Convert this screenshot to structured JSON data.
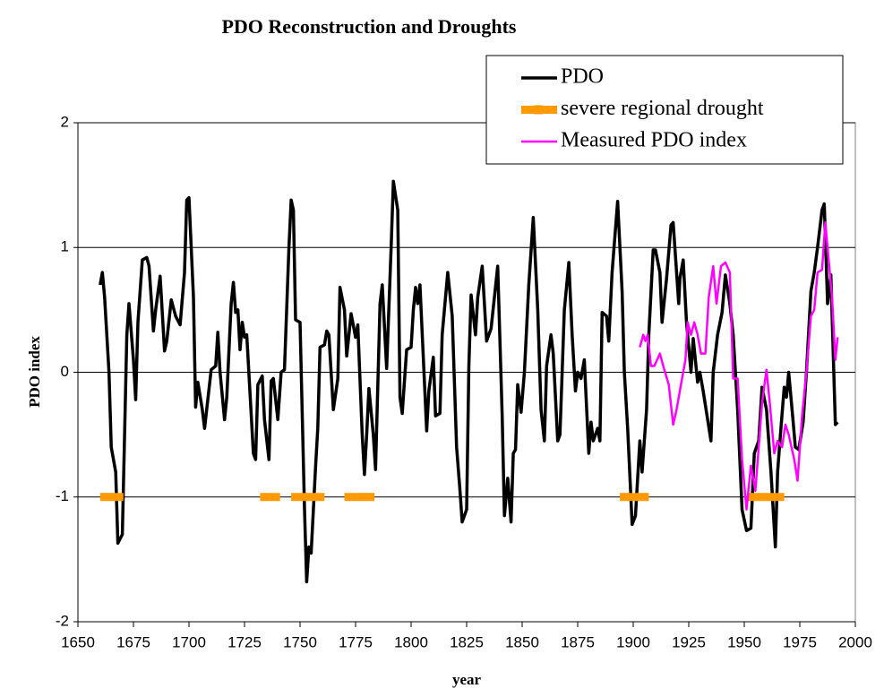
{
  "chart_data": {
    "type": "line",
    "title": "PDO Reconstruction and Droughts",
    "xlabel": "year",
    "ylabel": "PDO index",
    "xlim": [
      1650,
      2000
    ],
    "ylim": [
      -2,
      2
    ],
    "xticks": [
      1650,
      1675,
      1700,
      1725,
      1750,
      1775,
      1800,
      1825,
      1850,
      1875,
      1900,
      1925,
      1950,
      1975,
      2000
    ],
    "yticks": [
      2,
      1,
      0,
      -1,
      -2
    ],
    "grid": true,
    "legend": "upper right",
    "series": [
      {
        "name": "PDO",
        "color": "#000000",
        "x": [
          1660,
          1661,
          1662,
          1664,
          1665,
          1667,
          1668,
          1670,
          1672,
          1673,
          1675,
          1676,
          1677,
          1679,
          1681,
          1682,
          1684,
          1685,
          1687,
          1689,
          1690,
          1692,
          1694,
          1696,
          1698,
          1699,
          1700,
          1702,
          1703,
          1704,
          1706,
          1707,
          1710,
          1712,
          1713,
          1714,
          1716,
          1717,
          1719,
          1720,
          1721,
          1722,
          1723,
          1724,
          1725,
          1726,
          1729,
          1730,
          1731,
          1733,
          1734,
          1736,
          1737,
          1738,
          1740,
          1741.5,
          1743,
          1745,
          1746,
          1747,
          1748,
          1750,
          1752,
          1753,
          1754,
          1755,
          1757,
          1758,
          1759,
          1761,
          1762,
          1763,
          1765,
          1767,
          1768,
          1770,
          1771,
          1772,
          1773,
          1775,
          1776,
          1778,
          1779,
          1780,
          1781,
          1783,
          1784,
          1786,
          1787,
          1789,
          1791,
          1792,
          1794,
          1795,
          1796,
          1798,
          1800,
          1801,
          1802,
          1803,
          1804,
          1807,
          1808,
          1810,
          1811,
          1813,
          1814,
          1816.5,
          1818.5,
          1820.5,
          1822,
          1823,
          1825,
          1826,
          1827,
          1829,
          1830,
          1832,
          1834,
          1836,
          1839,
          1841,
          1842,
          1843.5,
          1845,
          1846,
          1847,
          1848,
          1849.5,
          1851,
          1853,
          1855,
          1857,
          1858.5,
          1860,
          1861,
          1863,
          1864,
          1866,
          1867,
          1869,
          1871,
          1872.5,
          1874,
          1875,
          1876.5,
          1878,
          1879,
          1880,
          1881,
          1882,
          1884,
          1885,
          1886,
          1888,
          1889,
          1890.5,
          1893,
          1895,
          1896,
          1897.5,
          1899.5,
          1901,
          1903,
          1904,
          1906,
          1907,
          1909,
          1910,
          1912,
          1913,
          1915,
          1917,
          1918,
          1920.5,
          1921,
          1922.5,
          1924,
          1926,
          1927,
          1929,
          1930,
          1931.5,
          1933.5,
          1935,
          1936,
          1938,
          1940,
          1941.5,
          1943.5,
          1945,
          1947,
          1949,
          1951,
          1953,
          1954.5,
          1956.5,
          1958,
          1960,
          1962,
          1964,
          1965,
          1966.5,
          1968,
          1969,
          1970,
          1972,
          1973,
          1974.5,
          1976.5,
          1978,
          1980,
          1981.5,
          1983,
          1985,
          1986,
          1987.5,
          1989,
          1991,
          1992
        ],
        "values": [
          0.7,
          0.8,
          0.6,
          0.0,
          -0.6,
          -0.8,
          -1.37,
          -1.3,
          0.3,
          0.55,
          0.1,
          -0.22,
          0.4,
          0.9,
          0.92,
          0.85,
          0.33,
          0.5,
          0.77,
          0.17,
          0.25,
          0.58,
          0.45,
          0.38,
          0.8,
          1.38,
          1.4,
          0.6,
          -0.28,
          -0.08,
          -0.3,
          -0.45,
          0.02,
          0.05,
          0.32,
          0.0,
          -0.38,
          -0.2,
          0.55,
          0.72,
          0.48,
          0.5,
          0.18,
          0.4,
          0.28,
          0.3,
          -0.65,
          -0.7,
          -0.1,
          -0.03,
          -0.38,
          -0.7,
          -0.07,
          -0.05,
          -0.38,
          0.0,
          0.02,
          1.0,
          1.38,
          1.3,
          0.42,
          0.4,
          -1.1,
          -1.68,
          -1.4,
          -1.45,
          -0.75,
          -0.45,
          0.2,
          0.22,
          0.33,
          0.3,
          -0.3,
          -0.05,
          0.68,
          0.5,
          0.13,
          0.3,
          0.47,
          0.28,
          0.38,
          -0.5,
          -0.82,
          -0.5,
          -0.13,
          -0.5,
          -0.78,
          0.55,
          0.7,
          0.03,
          1.0,
          1.53,
          1.3,
          -0.2,
          -0.33,
          0.18,
          0.2,
          0.5,
          0.68,
          0.55,
          0.7,
          -0.47,
          -0.15,
          0.12,
          -0.35,
          -0.33,
          0.3,
          0.8,
          0.45,
          -0.6,
          -0.95,
          -1.2,
          -1.1,
          0.05,
          0.62,
          0.3,
          0.6,
          0.85,
          0.25,
          0.35,
          0.85,
          -0.35,
          -1.15,
          -0.85,
          -1.2,
          -0.65,
          -0.62,
          -0.1,
          -0.32,
          0.0,
          0.7,
          1.24,
          0.5,
          -0.3,
          -0.55,
          0.05,
          0.3,
          0.15,
          -0.55,
          -0.5,
          0.5,
          0.88,
          0.3,
          -0.15,
          0.0,
          -0.05,
          0.1,
          -0.28,
          -0.65,
          -0.4,
          -0.55,
          -0.45,
          -0.55,
          0.48,
          0.45,
          0.25,
          0.8,
          1.37,
          0.65,
          0.0,
          -0.45,
          -1.22,
          -1.15,
          -0.55,
          -0.8,
          -0.3,
          0.3,
          0.98,
          0.98,
          0.8,
          0.4,
          0.75,
          1.18,
          1.2,
          0.55,
          0.75,
          0.9,
          0.4,
          0.0,
          0.27,
          -0.08,
          0.0,
          -0.15,
          -0.38,
          -0.55,
          0.0,
          0.3,
          0.48,
          0.78,
          0.55,
          0.3,
          -0.3,
          -1.1,
          -1.27,
          -1.25,
          -0.65,
          -0.55,
          -0.12,
          -0.3,
          -0.8,
          -1.4,
          -0.8,
          -0.45,
          -0.12,
          -0.2,
          0.0,
          -0.4,
          -0.6,
          -0.62,
          -0.4,
          0.0,
          0.65,
          0.8,
          1.0,
          1.3,
          1.35,
          0.55,
          0.78,
          -0.42,
          -0.4
        ]
      },
      {
        "name": "severe regional drought",
        "color": "#ff9900",
        "x": [
          1660,
          1670.5,
          null,
          1732,
          1741,
          null,
          1746,
          1761,
          null,
          1770,
          1783.5,
          null,
          1894,
          1907,
          null,
          1951.5,
          1968
        ],
        "values": [
          -1,
          -1,
          null,
          -1,
          -1,
          null,
          -1,
          -1,
          null,
          -1,
          -1,
          null,
          -1,
          -1,
          null,
          -1,
          -1
        ]
      },
      {
        "name": "Measured PDO index",
        "color": "#ff00ff",
        "x": [
          1903,
          1904.5,
          1905.5,
          1906.5,
          1908,
          1909.5,
          1912,
          1913.5,
          1916,
          1918,
          1919.5,
          1921.5,
          1923.5,
          1924.5,
          1926,
          1927.5,
          1929,
          1930.5,
          1932.5,
          1934,
          1936,
          1937.5,
          1939.5,
          1941.5,
          1943.5,
          1945,
          1947,
          1949,
          1950,
          1951,
          1953,
          1955,
          1956.5,
          1958,
          1960,
          1961.5,
          1963.5,
          1965,
          1967,
          1968.5,
          1970,
          1972.5,
          1974,
          1976,
          1978,
          1980,
          1981.5,
          1983,
          1985,
          1986.5,
          1988,
          1989.5,
          1991,
          1992
        ],
        "values": [
          0.2,
          0.3,
          0.25,
          0.3,
          0.05,
          0.05,
          0.15,
          0.05,
          -0.1,
          -0.42,
          -0.3,
          -0.1,
          0.1,
          0.4,
          0.3,
          0.4,
          0.3,
          0.15,
          0.15,
          0.6,
          0.85,
          0.55,
          0.85,
          0.88,
          0.8,
          -0.05,
          -0.05,
          -0.7,
          -0.9,
          -1.1,
          -0.75,
          -0.95,
          -0.6,
          -0.25,
          0.02,
          -0.25,
          -0.65,
          -0.55,
          -0.6,
          -0.42,
          -0.5,
          -0.7,
          -0.87,
          -0.35,
          0.0,
          0.45,
          0.5,
          0.8,
          0.82,
          1.2,
          0.9,
          0.6,
          0.1,
          0.28
        ]
      }
    ]
  }
}
